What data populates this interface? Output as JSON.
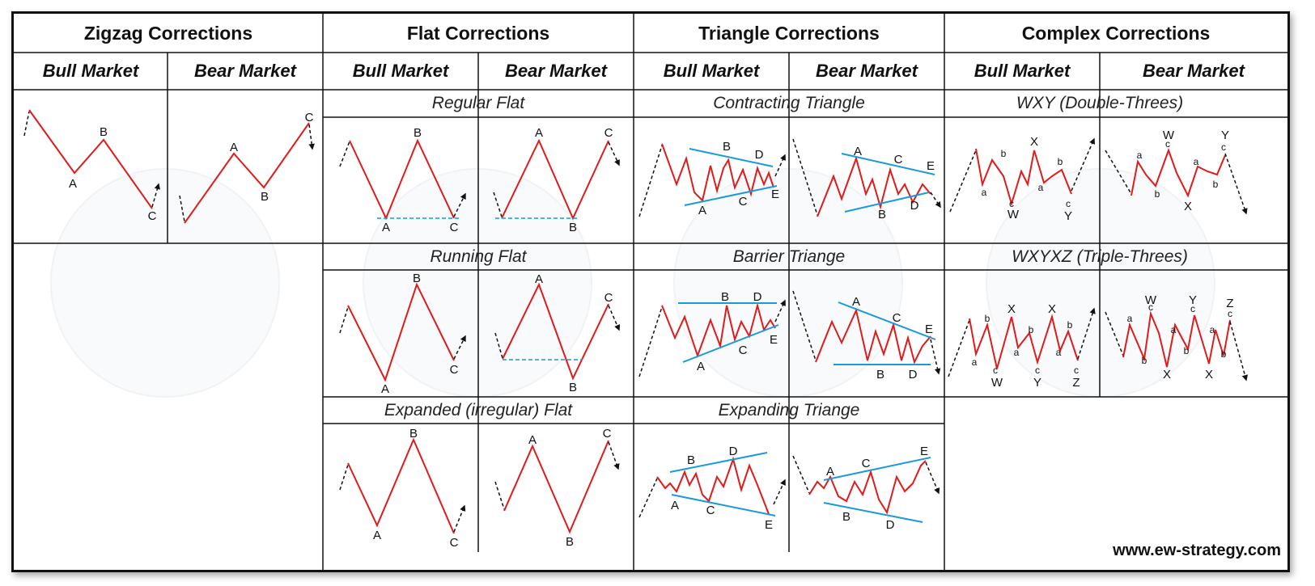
{
  "headers": {
    "zigzag": "Zigzag Corrections",
    "flat": "Flat Corrections",
    "triangle": "Triangle Corrections",
    "complex": "Complex Corrections"
  },
  "sub_headers": {
    "zigzag_bull": "Bull Market",
    "zigzag_bear": "Bear Market",
    "flat_bull": "Bull Market",
    "flat_bear": "Bear Market",
    "triangle_bull": "Bull Market",
    "triangle_bear": "Bear Market",
    "complex_bull": "Bull Market",
    "complex_bear": "Bear Market"
  },
  "patterns": {
    "regular_flat": "Regular Flat",
    "running_flat": "Running Flat",
    "expanded_flat": "Expanded (irregular) Flat",
    "contracting_triangle": "Contracting Triangle",
    "barrier_triangle": "Barrier Triange",
    "expanding_triangle": "Expanding Triange",
    "wxy": "WXY (Double-Threes)",
    "wxyxz": "WXYXZ (Triple-Threes)"
  },
  "website": "www.ew-strategy.com",
  "colors": {
    "wave": "#e01b1b",
    "trendline": "#1a9ad6",
    "border": "#111111"
  }
}
